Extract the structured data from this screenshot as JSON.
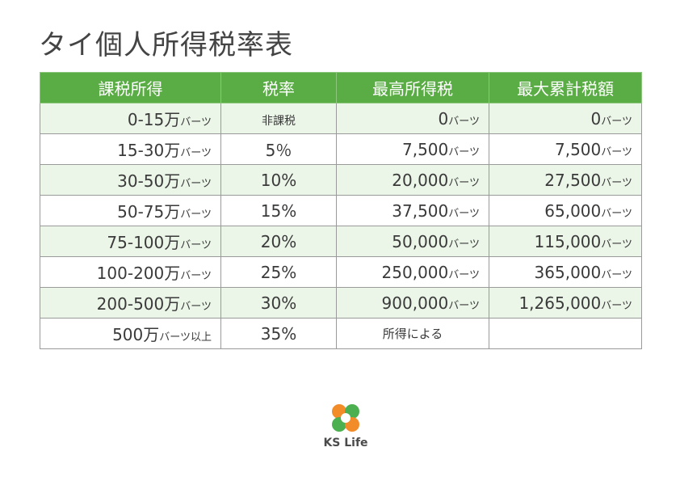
{
  "title": "タイ個人所得税率表",
  "headers": [
    "課税所得",
    "税率",
    "最高所得税",
    "最大累計税額"
  ],
  "unit": "バーツ",
  "rows": [
    {
      "income": "0-15万",
      "income_unit": "バーツ",
      "rate": "非課税",
      "max_tax": "0",
      "max_tax_unit": "バーツ",
      "cumulative": "0",
      "cumulative_unit": "バーツ"
    },
    {
      "income": "15-30万",
      "income_unit": "バーツ",
      "rate": "5％",
      "max_tax": "7,500",
      "max_tax_unit": "バーツ",
      "cumulative": "7,500",
      "cumulative_unit": "バーツ"
    },
    {
      "income": "30-50万",
      "income_unit": "バーツ",
      "rate": "10%",
      "max_tax": "20,000",
      "max_tax_unit": "バーツ",
      "cumulative": "27,500",
      "cumulative_unit": "バーツ"
    },
    {
      "income": "50-75万",
      "income_unit": "バーツ",
      "rate": "15%",
      "max_tax": "37,500",
      "max_tax_unit": "バーツ",
      "cumulative": "65,000",
      "cumulative_unit": "バーツ"
    },
    {
      "income": "75-100万",
      "income_unit": "バーツ",
      "rate": "20%",
      "max_tax": "50,000",
      "max_tax_unit": "バーツ",
      "cumulative": "115,000",
      "cumulative_unit": "バーツ"
    },
    {
      "income": "100-200万",
      "income_unit": "バーツ",
      "rate": "25%",
      "max_tax": "250,000",
      "max_tax_unit": "バーツ",
      "cumulative": "365,000",
      "cumulative_unit": "バーツ"
    },
    {
      "income": "200-500万",
      "income_unit": "バーツ",
      "rate": "30%",
      "max_tax": "900,000",
      "max_tax_unit": "バーツ",
      "cumulative": "1,265,000",
      "cumulative_unit": "バーツ"
    },
    {
      "income": "500万",
      "income_unit": "バーツ以上",
      "rate": "35%",
      "max_tax": "所得による",
      "max_tax_unit": "",
      "cumulative": "",
      "cumulative_unit": ""
    }
  ],
  "logo": {
    "text": "KS Life",
    "icon": "four-leaf-clover-icon",
    "colors": [
      "#f28c28",
      "#4caf50"
    ]
  },
  "colors": {
    "header_bg": "#5aac44",
    "row_shade": "#ebf5e8"
  }
}
